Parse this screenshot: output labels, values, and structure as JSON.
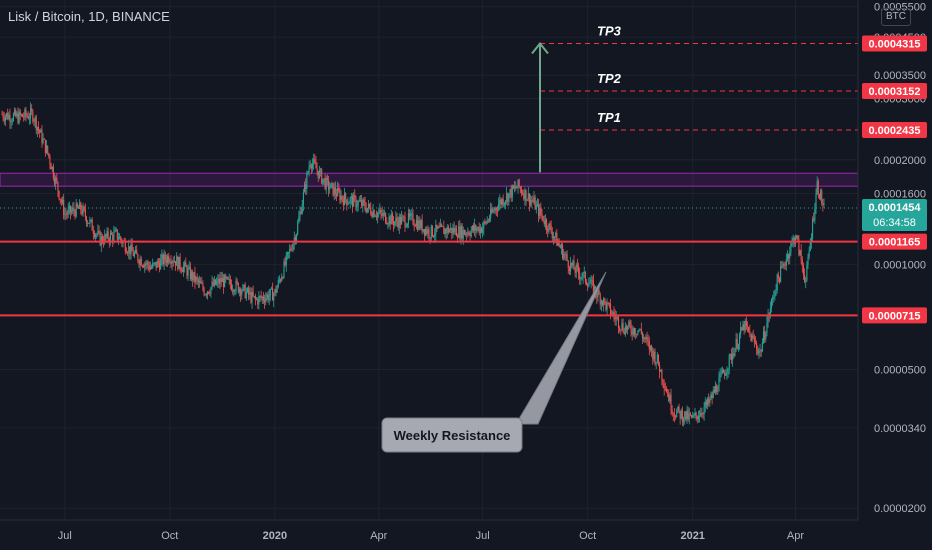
{
  "header": {
    "symbol_title": "Lisk / Bitcoin, 1D, BINANCE",
    "currency": "BTC"
  },
  "chart_data": {
    "type": "candlestick",
    "symbol": "Lisk / Bitcoin",
    "interval": "1D",
    "exchange": "BINANCE",
    "y_scale": "log",
    "ylim": [
      1.85e-05,
      0.00056
    ],
    "y_tick_labels": [
      "0.0000200",
      "0.0000340",
      "0.0000500",
      "0.0001000",
      "0.0001600",
      "0.0002000",
      "0.0003000",
      "0.0003500",
      "0.0004500",
      "0.0005500"
    ],
    "x_tick_labels": [
      "Jul",
      "Oct",
      "2020",
      "Apr",
      "Jul",
      "Oct",
      "2021",
      "Apr"
    ],
    "x": [
      "2019-05-07",
      "2019-05-20",
      "2019-06-03",
      "2019-06-17",
      "2019-07-01",
      "2019-07-15",
      "2019-08-01",
      "2019-08-15",
      "2019-09-01",
      "2019-09-15",
      "2019-10-01",
      "2019-10-15",
      "2019-11-01",
      "2019-11-15",
      "2019-12-01",
      "2019-12-15",
      "2020-01-01",
      "2020-01-10",
      "2020-01-20",
      "2020-02-01",
      "2020-02-15",
      "2020-03-01",
      "2020-03-15",
      "2020-04-01",
      "2020-04-15",
      "2020-05-01",
      "2020-05-15",
      "2020-06-01",
      "2020-06-15",
      "2020-07-01",
      "2020-07-15",
      "2020-08-01",
      "2020-08-15",
      "2020-09-01",
      "2020-09-15",
      "2020-10-01",
      "2020-10-15",
      "2020-11-01",
      "2020-11-15",
      "2020-12-01",
      "2020-12-15",
      "2021-01-01",
      "2021-01-15",
      "2021-02-01",
      "2021-02-15",
      "2021-03-01",
      "2021-03-15",
      "2021-04-01",
      "2021-04-10",
      "2021-04-20",
      "2021-04-26"
    ],
    "close_approx": [
      0.00027,
      0.000265,
      0.00027,
      0.000205,
      0.00014,
      0.000145,
      0.000118,
      0.000122,
      0.000106,
      9.8e-05,
      0.000106,
      9.7e-05,
      8.4e-05,
      9e-05,
      8.6e-05,
      7.9e-05,
      8.3e-05,
      0.0001,
      0.000125,
      0.0002,
      0.00017,
      0.000155,
      0.00015,
      0.00014,
      0.000133,
      0.000135,
      0.000124,
      0.000126,
      0.000124,
      0.000128,
      0.00015,
      0.000168,
      0.00015,
      0.000122,
      0.0001,
      9e-05,
      7.8e-05,
      6.6e-05,
      6.5e-05,
      5.3e-05,
      3.8e-05,
      3.6e-05,
      4e-05,
      5.2e-05,
      6.7e-05,
      5.6e-05,
      8.8e-05,
      0.000122,
      9e-05,
      0.00017,
      0.000145
    ],
    "current_price": "0.0001454",
    "countdown": "06:34:58",
    "levels": [
      {
        "label": "TP3",
        "price": "0.0004315",
        "style": "dashed"
      },
      {
        "label": "TP2",
        "price": "0.0003152",
        "style": "dashed"
      },
      {
        "label": "TP1",
        "price": "0.0002435",
        "style": "dashed"
      },
      {
        "label": "",
        "price": "0.0001165",
        "style": "solid"
      },
      {
        "label": "",
        "price": "0.0000715",
        "style": "solid"
      }
    ],
    "resistance_band": [
      0.000168,
      0.000183
    ],
    "annotation": "Weekly Resistance",
    "colors": {
      "up": "#26a69a",
      "down": "#ef5350",
      "level": "#f23645",
      "band": "#9c27b0",
      "arrow": "#6fa88a",
      "background": "#131722",
      "text": "#b2b5be",
      "grid": "#1e222d"
    }
  }
}
